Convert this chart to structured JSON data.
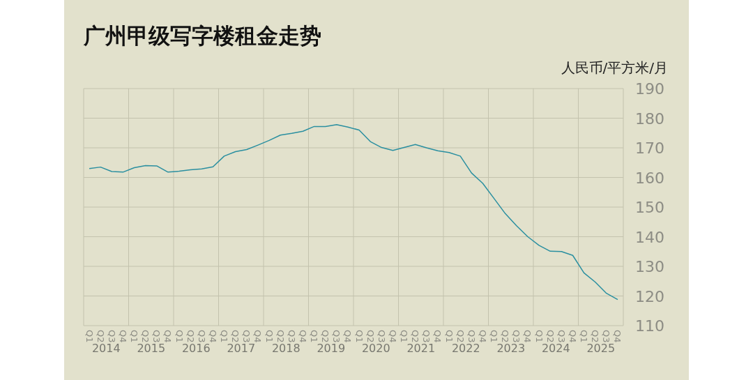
{
  "chart_data": {
    "type": "line",
    "title": "广州甲级写字楼租金走势",
    "ylabel": "人民币/平方米/月",
    "categories": [
      "Q1",
      "Q2",
      "Q3",
      "Q4",
      "Q1",
      "Q2",
      "Q3",
      "Q4",
      "Q1",
      "Q2",
      "Q3",
      "Q4",
      "Q1",
      "Q2",
      "Q3",
      "Q4",
      "Q1",
      "Q2",
      "Q3",
      "Q4",
      "Q1",
      "Q2",
      "Q3",
      "Q4",
      "Q1",
      "Q2",
      "Q3",
      "Q4",
      "Q1",
      "Q2",
      "Q3",
      "Q4",
      "Q1",
      "Q2",
      "Q3",
      "Q4",
      "Q1",
      "Q2",
      "Q3",
      "Q4",
      "Q1",
      "Q2",
      "Q3",
      "Q4",
      "Q1",
      "Q2",
      "Q3",
      "Q4"
    ],
    "values": [
      163.0,
      163.5,
      162.0,
      161.8,
      163.3,
      164.0,
      163.9,
      161.8,
      162.1,
      162.6,
      162.9,
      163.6,
      167.2,
      168.7,
      169.4,
      170.9,
      172.5,
      174.3,
      174.9,
      175.6,
      177.2,
      177.2,
      177.8,
      177.0,
      176.0,
      172.1,
      170.1,
      169.1,
      170.1,
      171.1,
      170.0,
      169.0,
      168.4,
      167.2,
      161.5,
      158.0,
      152.9,
      147.8,
      143.7,
      140.0,
      137.1,
      135.1,
      135.0,
      133.7,
      127.8,
      124.7,
      120.9,
      118.8
    ],
    "color": "#2a8fa0",
    "ylim": [
      110,
      190
    ],
    "yticks": [
      110,
      120,
      130,
      140,
      150,
      160,
      170,
      180,
      190
    ],
    "grid": true,
    "annotations": [
      "2014",
      "2015",
      "2016",
      "2017",
      "2018",
      "2019",
      "2020",
      "2021",
      "2022",
      "2023",
      "2024",
      "2025"
    ]
  }
}
